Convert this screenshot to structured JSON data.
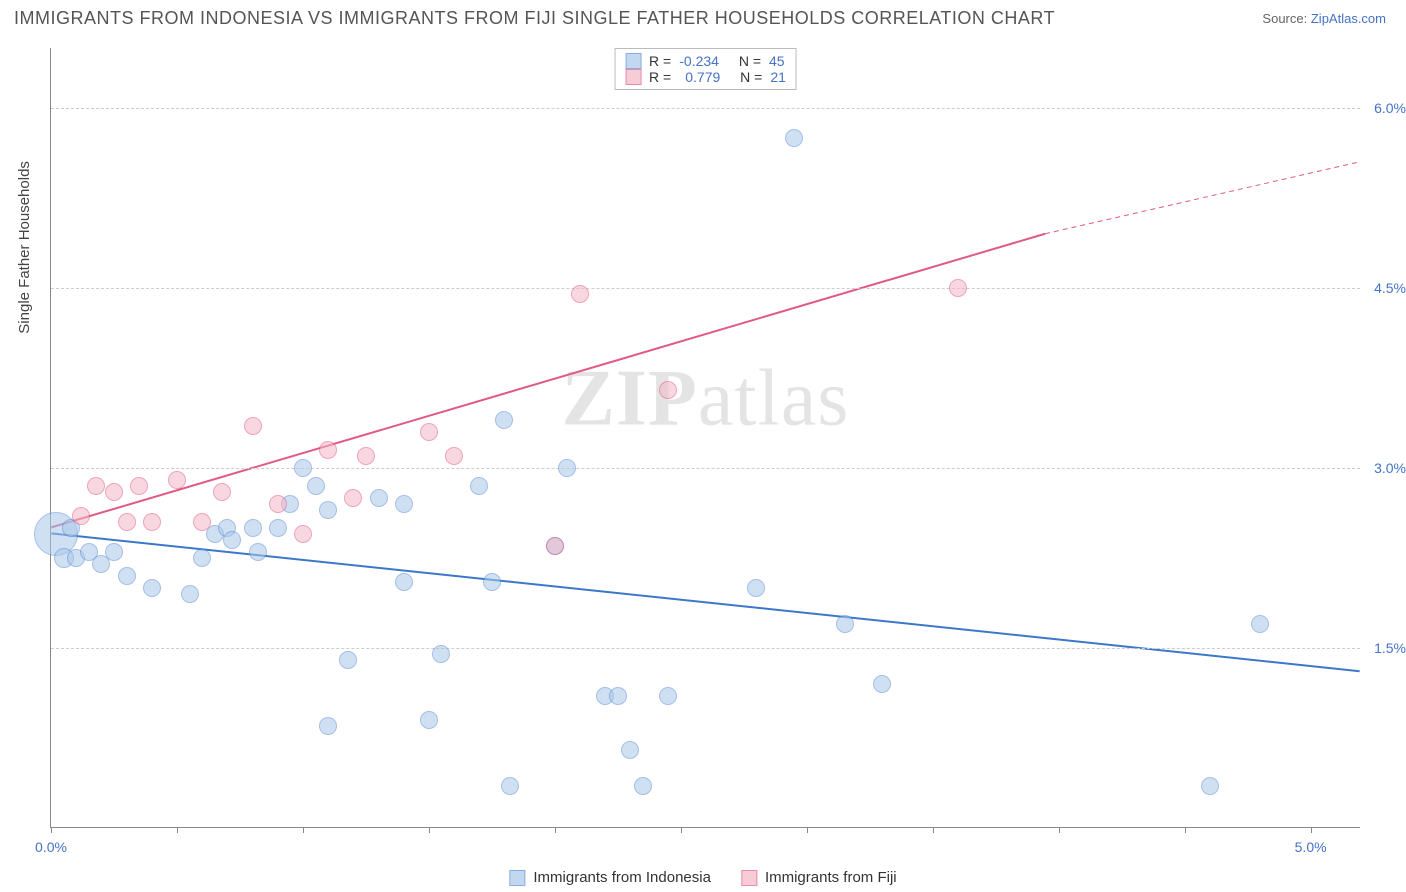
{
  "header": {
    "title": "IMMIGRANTS FROM INDONESIA VS IMMIGRANTS FROM FIJI SINGLE FATHER HOUSEHOLDS CORRELATION CHART",
    "source_label": "Source:",
    "source_link": "ZipAtlas.com"
  },
  "chart": {
    "type": "scatter",
    "xlim": [
      0,
      5.2
    ],
    "ylim": [
      0,
      6.5
    ],
    "xticks_major": [
      0.0,
      5.0
    ],
    "xticks_minor": [
      0.5,
      1.0,
      1.5,
      2.0,
      2.5,
      3.0,
      3.5,
      4.0,
      4.5
    ],
    "yticks": [
      1.5,
      3.0,
      4.5,
      6.0
    ],
    "ylabel": "Single Father Households",
    "background_color": "#ffffff",
    "grid_color": "#cccccc",
    "axis_color": "#888888",
    "tick_label_color": "#4472c4",
    "watermark": "ZIPatlas"
  },
  "series": {
    "indonesia": {
      "label": "Immigrants from Indonesia",
      "color_fill": "#a9c7ea",
      "color_stroke": "#5b8bd0",
      "fill_opacity": 0.55,
      "marker_radius": 9,
      "reg_line": {
        "x1": 0.0,
        "y1": 2.45,
        "x2": 5.2,
        "y2": 1.3,
        "color": "#3b78c9",
        "width": 2
      },
      "R": "-0.234",
      "N": "45",
      "points": [
        {
          "x": 0.02,
          "y": 2.45,
          "r": 22
        },
        {
          "x": 0.05,
          "y": 2.25,
          "r": 10
        },
        {
          "x": 0.08,
          "y": 2.5,
          "r": 9
        },
        {
          "x": 0.1,
          "y": 2.25,
          "r": 9
        },
        {
          "x": 0.15,
          "y": 2.3,
          "r": 9
        },
        {
          "x": 0.2,
          "y": 2.2,
          "r": 9
        },
        {
          "x": 0.25,
          "y": 2.3,
          "r": 9
        },
        {
          "x": 0.3,
          "y": 2.1,
          "r": 9
        },
        {
          "x": 0.4,
          "y": 2.0,
          "r": 9
        },
        {
          "x": 0.55,
          "y": 1.95,
          "r": 9
        },
        {
          "x": 0.6,
          "y": 2.25,
          "r": 9
        },
        {
          "x": 0.65,
          "y": 2.45,
          "r": 9
        },
        {
          "x": 0.7,
          "y": 2.5,
          "r": 9
        },
        {
          "x": 0.72,
          "y": 2.4,
          "r": 9
        },
        {
          "x": 0.8,
          "y": 2.5,
          "r": 9
        },
        {
          "x": 0.82,
          "y": 2.3,
          "r": 9
        },
        {
          "x": 0.9,
          "y": 2.5,
          "r": 9
        },
        {
          "x": 0.95,
          "y": 2.7,
          "r": 9
        },
        {
          "x": 1.0,
          "y": 3.0,
          "r": 9
        },
        {
          "x": 1.05,
          "y": 2.85,
          "r": 9
        },
        {
          "x": 1.1,
          "y": 2.65,
          "r": 9
        },
        {
          "x": 1.1,
          "y": 0.85,
          "r": 9
        },
        {
          "x": 1.18,
          "y": 1.4,
          "r": 9
        },
        {
          "x": 1.3,
          "y": 2.75,
          "r": 9
        },
        {
          "x": 1.4,
          "y": 2.7,
          "r": 9
        },
        {
          "x": 1.4,
          "y": 2.05,
          "r": 9
        },
        {
          "x": 1.5,
          "y": 0.9,
          "r": 9
        },
        {
          "x": 1.55,
          "y": 1.45,
          "r": 9
        },
        {
          "x": 1.7,
          "y": 2.85,
          "r": 9
        },
        {
          "x": 1.75,
          "y": 2.05,
          "r": 9
        },
        {
          "x": 1.8,
          "y": 3.4,
          "r": 9
        },
        {
          "x": 1.82,
          "y": 0.35,
          "r": 9
        },
        {
          "x": 2.0,
          "y": 2.35,
          "r": 9
        },
        {
          "x": 2.05,
          "y": 3.0,
          "r": 9
        },
        {
          "x": 2.2,
          "y": 1.1,
          "r": 9
        },
        {
          "x": 2.25,
          "y": 1.1,
          "r": 9
        },
        {
          "x": 2.35,
          "y": 0.35,
          "r": 9
        },
        {
          "x": 2.45,
          "y": 1.1,
          "r": 9
        },
        {
          "x": 2.3,
          "y": 0.65,
          "r": 9
        },
        {
          "x": 2.8,
          "y": 2.0,
          "r": 9
        },
        {
          "x": 2.95,
          "y": 5.75,
          "r": 9
        },
        {
          "x": 3.15,
          "y": 1.7,
          "r": 9
        },
        {
          "x": 3.3,
          "y": 1.2,
          "r": 9
        },
        {
          "x": 4.6,
          "y": 0.35,
          "r": 9
        },
        {
          "x": 4.8,
          "y": 1.7,
          "r": 9
        }
      ]
    },
    "fiji": {
      "label": "Immigrants from Fiji",
      "color_fill": "#f3b7c7",
      "color_stroke": "#e05a84",
      "fill_opacity": 0.55,
      "marker_radius": 9,
      "reg_line_solid": {
        "x1": 0.0,
        "y1": 2.5,
        "x2": 3.95,
        "y2": 4.95,
        "color": "#e05a84",
        "width": 2
      },
      "reg_line_dash": {
        "x1": 3.95,
        "y1": 4.95,
        "x2": 5.2,
        "y2": 5.55,
        "color": "#e05a84",
        "width": 1
      },
      "R": "0.779",
      "N": "21",
      "points": [
        {
          "x": 0.12,
          "y": 2.6,
          "r": 9
        },
        {
          "x": 0.18,
          "y": 2.85,
          "r": 9
        },
        {
          "x": 0.25,
          "y": 2.8,
          "r": 9
        },
        {
          "x": 0.3,
          "y": 2.55,
          "r": 9
        },
        {
          "x": 0.35,
          "y": 2.85,
          "r": 9
        },
        {
          "x": 0.4,
          "y": 2.55,
          "r": 9
        },
        {
          "x": 0.5,
          "y": 2.9,
          "r": 9
        },
        {
          "x": 0.6,
          "y": 2.55,
          "r": 9
        },
        {
          "x": 0.68,
          "y": 2.8,
          "r": 9
        },
        {
          "x": 0.8,
          "y": 3.35,
          "r": 9
        },
        {
          "x": 0.9,
          "y": 2.7,
          "r": 9
        },
        {
          "x": 1.0,
          "y": 2.45,
          "r": 9
        },
        {
          "x": 1.1,
          "y": 3.15,
          "r": 9
        },
        {
          "x": 1.2,
          "y": 2.75,
          "r": 9
        },
        {
          "x": 1.25,
          "y": 3.1,
          "r": 9
        },
        {
          "x": 1.5,
          "y": 3.3,
          "r": 9
        },
        {
          "x": 1.6,
          "y": 3.1,
          "r": 9
        },
        {
          "x": 2.0,
          "y": 2.35,
          "r": 9
        },
        {
          "x": 2.1,
          "y": 4.45,
          "r": 9
        },
        {
          "x": 2.45,
          "y": 3.65,
          "r": 9
        },
        {
          "x": 3.6,
          "y": 4.5,
          "r": 9
        }
      ]
    }
  },
  "legend_top": {
    "r_label": "R =",
    "n_label": "N ="
  },
  "legend_bottom": {
    "items": [
      "indonesia",
      "fiji"
    ]
  }
}
